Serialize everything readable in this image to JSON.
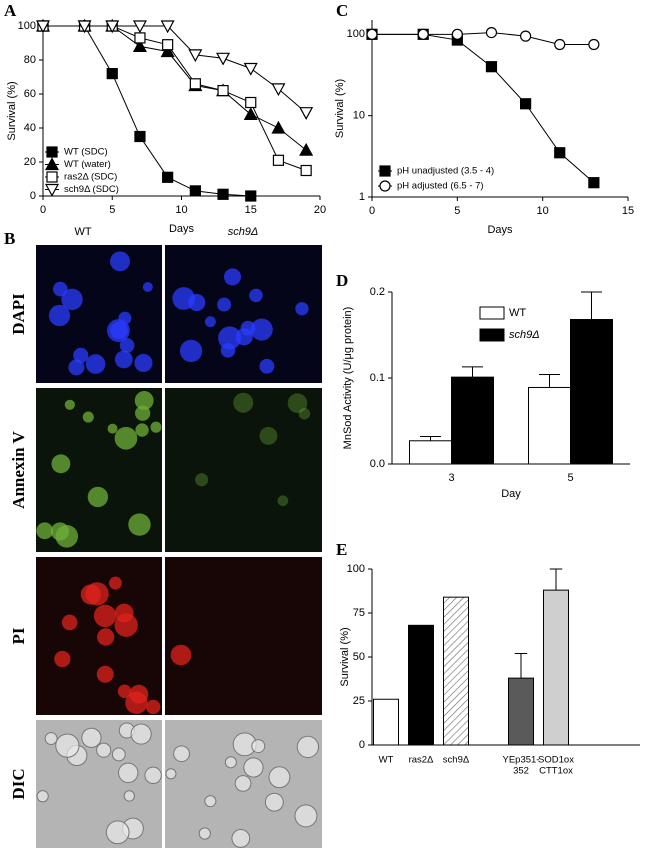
{
  "chart_data": [
    {
      "type": "line",
      "panel": "A",
      "xlabel": "Days",
      "ylabel": "Survival (%)",
      "xlim": [
        0,
        20
      ],
      "xticks": [
        0,
        5,
        10,
        15,
        20
      ],
      "ylim": [
        0,
        100
      ],
      "yticks": [
        0,
        20,
        40,
        60,
        80,
        100
      ],
      "series": [
        {
          "name": "WT (SDC)",
          "marker": "square",
          "filled": true,
          "color": "#000000",
          "x": [
            0,
            3,
            5,
            7,
            9,
            11,
            13,
            15
          ],
          "values": [
            100,
            100,
            72,
            35,
            11,
            3,
            1,
            0
          ]
        },
        {
          "name": "WT (water)",
          "marker": "triangle",
          "filled": true,
          "color": "#000000",
          "x": [
            0,
            3,
            5,
            7,
            9,
            11,
            13,
            15,
            17,
            19
          ],
          "values": [
            100,
            100,
            100,
            88,
            85,
            65,
            62,
            48,
            40,
            27
          ]
        },
        {
          "name": "ras2Δ (SDC)",
          "marker": "square",
          "filled": false,
          "color": "#000000",
          "x": [
            0,
            3,
            5,
            7,
            9,
            11,
            13,
            15,
            17,
            19
          ],
          "values": [
            100,
            100,
            100,
            93,
            89,
            66,
            62,
            55,
            21,
            15
          ]
        },
        {
          "name": "sch9Δ (SDC)",
          "marker": "triangle-down",
          "filled": false,
          "color": "#000000",
          "x": [
            0,
            3,
            5,
            7,
            9,
            11,
            13,
            15,
            17,
            19
          ],
          "values": [
            100,
            100,
            100,
            100,
            100,
            83,
            81,
            75,
            63,
            49
          ]
        }
      ]
    },
    {
      "type": "line",
      "panel": "C",
      "xlabel": "Days",
      "ylabel": "Survival (%)",
      "log": true,
      "xlim": [
        0,
        15
      ],
      "xticks": [
        0,
        5,
        10,
        15
      ],
      "ylim": [
        1,
        150
      ],
      "yticks": [
        1,
        10,
        100
      ],
      "series": [
        {
          "name": "pH unadjusted (3.5 - 4)",
          "marker": "square",
          "filled": true,
          "color": "#000000",
          "x": [
            0,
            3,
            5,
            7,
            9,
            11,
            13
          ],
          "values": [
            100,
            100,
            85,
            40,
            14,
            3.5,
            1.5
          ]
        },
        {
          "name": "pH adjusted (6.5 - 7)",
          "marker": "circle",
          "filled": false,
          "color": "#000000",
          "x": [
            0,
            3,
            5,
            7,
            9,
            11,
            13
          ],
          "values": [
            100,
            100,
            100,
            105,
            95,
            75,
            75
          ]
        }
      ]
    },
    {
      "type": "bar",
      "panel": "D",
      "xlabel": "Day",
      "ylabel": "MnSod Activity (U/μg protein)",
      "categories": [
        "3",
        "5"
      ],
      "ylim": [
        0,
        0.2
      ],
      "yticks": [
        {
          "value": 0,
          "label": "0.0"
        },
        0.1,
        0.2
      ],
      "series": [
        {
          "name": "WT",
          "color": "#ffffff",
          "values": [
            0.027,
            0.089
          ],
          "errors": [
            0.005,
            0.015
          ]
        },
        {
          "name": "sch9Δ",
          "color": "#000000",
          "values": [
            0.101,
            0.168
          ],
          "errors": [
            0.012,
            0.032
          ]
        }
      ]
    },
    {
      "type": "bar",
      "panel": "E",
      "ylabel": "Survival (%)",
      "categories": [
        [
          "WT"
        ],
        [
          "ras2Δ"
        ],
        [
          "sch9Δ"
        ],
        [
          "YEp351-",
          "352"
        ],
        [
          "SOD1ox",
          "CTT1ox"
        ]
      ],
      "ylim": [
        0,
        100
      ],
      "yticks": [
        0,
        25,
        50,
        75,
        100
      ],
      "series": [
        {
          "colors": [
            "#ffffff",
            "#000000",
            "#ffffff",
            "#5a5a5a",
            "#cfcfcf"
          ],
          "hatched": [
            false,
            false,
            true,
            false,
            false
          ],
          "values": [
            26,
            68,
            84,
            38,
            88
          ],
          "errors": [
            null,
            null,
            null,
            14,
            12
          ]
        }
      ]
    }
  ],
  "micrographs": {
    "panel": "B",
    "columns": [
      "WT",
      "sch9Δ"
    ],
    "rows": [
      "DAPI",
      "Annexin V",
      "PI",
      "DIC"
    ]
  }
}
